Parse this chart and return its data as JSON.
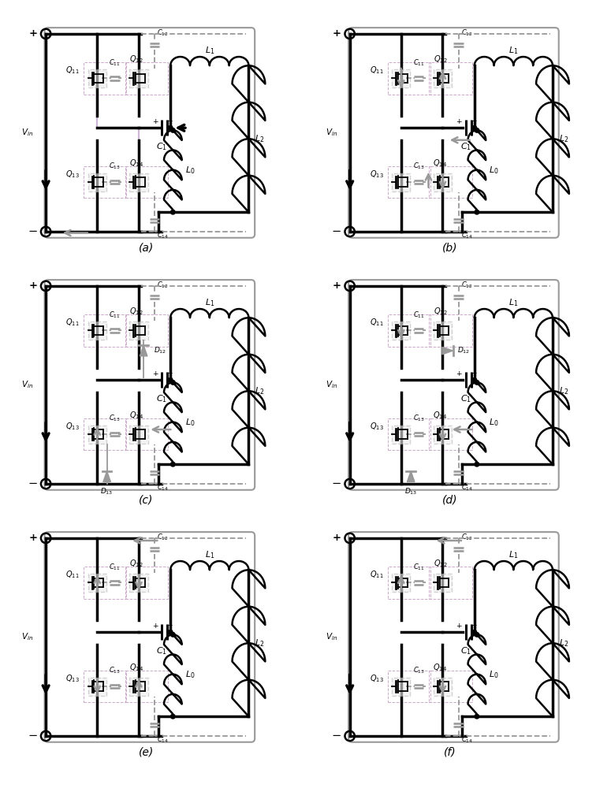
{
  "fig_size": [
    7.56,
    10.0
  ],
  "bg_color": "#ffffff",
  "panels": [
    "a",
    "b",
    "c",
    "d",
    "e",
    "f"
  ],
  "bk": "#000000",
  "gr": "#999999",
  "pur": "#bb99cc",
  "lw_t": 2.5,
  "lw_m": 1.8,
  "lw_th": 1.3,
  "fs": 7.5,
  "fs_panel": 10
}
